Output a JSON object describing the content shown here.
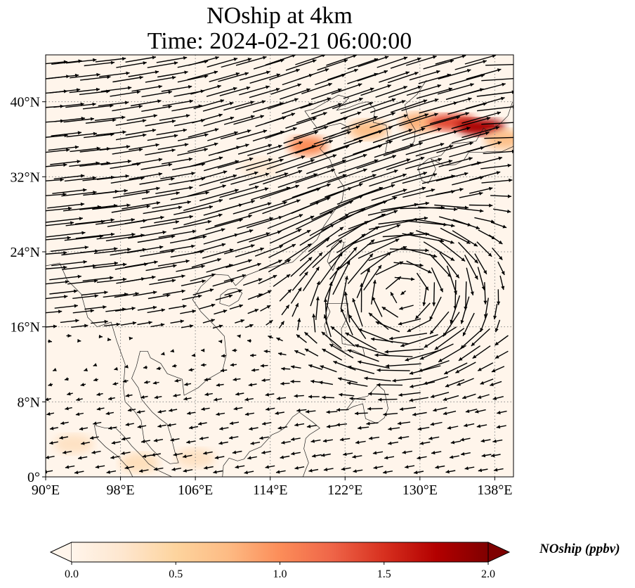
{
  "map": {
    "title_line1": "NOship at 4km",
    "title_line2": "Time: 2024-02-21 06:00:00",
    "variable": "NOship",
    "units": "ppbv",
    "extent": {
      "lon_min": 90,
      "lon_max": 140,
      "lat_min": 0,
      "lat_max": 45
    },
    "lon_ticks": [
      {
        "value": 90,
        "label": "90°E"
      },
      {
        "value": 98,
        "label": "98°E"
      },
      {
        "value": 106,
        "label": "106°E"
      },
      {
        "value": 114,
        "label": "114°E"
      },
      {
        "value": 122,
        "label": "122°E"
      },
      {
        "value": 130,
        "label": "130°E"
      },
      {
        "value": 138,
        "label": "138°E"
      }
    ],
    "lat_ticks": [
      {
        "value": 0,
        "label": "0°"
      },
      {
        "value": 8,
        "label": "8°N"
      },
      {
        "value": 16,
        "label": "16°N"
      },
      {
        "value": 24,
        "label": "24°N"
      },
      {
        "value": 32,
        "label": "32°N"
      },
      {
        "value": 40,
        "label": "40°N"
      }
    ],
    "gridlines": "dotted",
    "background_color": "#fff5eb",
    "colormap": "OrRd",
    "hotspots_ppbv": [
      {
        "lon": 118.0,
        "lat": 35.3,
        "value": 1.0
      },
      {
        "lon": 124.5,
        "lat": 37.0,
        "value": 0.7
      },
      {
        "lon": 130.0,
        "lat": 37.8,
        "value": 0.8
      },
      {
        "lon": 133.5,
        "lat": 37.8,
        "value": 1.4
      },
      {
        "lon": 136.5,
        "lat": 37.3,
        "value": 1.8
      },
      {
        "lon": 139.0,
        "lat": 36.0,
        "value": 0.7
      },
      {
        "lon": 113.0,
        "lat": 33.0,
        "value": 0.2
      },
      {
        "lon": 93.0,
        "lat": 3.5,
        "value": 0.3
      },
      {
        "lon": 100.0,
        "lat": 1.5,
        "value": 0.35
      },
      {
        "lon": 106.0,
        "lat": 2.0,
        "value": 0.3
      }
    ],
    "wind_regime": {
      "westerly_jet_axis": [
        [
          90,
          26
        ],
        [
          98,
          27
        ],
        [
          106,
          28.5
        ],
        [
          114,
          31
        ],
        [
          122,
          34
        ],
        [
          130,
          37
        ],
        [
          138,
          39.5
        ]
      ],
      "anticyclone_center": {
        "lon": 128,
        "lat": 20
      },
      "vector_color": "#000000"
    }
  },
  "colorbar": {
    "label": "NOship (ppbv)",
    "min": 0.0,
    "max": 2.0,
    "extend": "both",
    "ticks": [
      "0.0",
      "0.5",
      "1.0",
      "1.5",
      "2.0"
    ],
    "colors": [
      "#fff5eb",
      "#fee6ce",
      "#fdd49e",
      "#fdbb84",
      "#fc8d59",
      "#ef6548",
      "#d7301f",
      "#b30000",
      "#7f0000"
    ]
  }
}
